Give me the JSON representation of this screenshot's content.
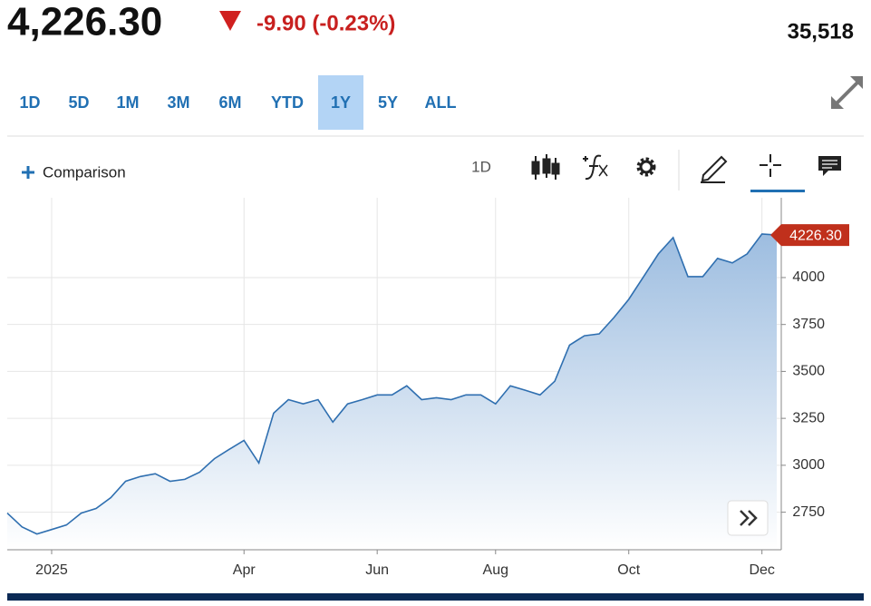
{
  "header": {
    "price": "4,226.30",
    "change": "-9.90 (-0.23%)",
    "volume": "35,518"
  },
  "ranges": [
    "1D",
    "5D",
    "1M",
    "3M",
    "6M",
    "YTD",
    "1Y",
    "5Y",
    "ALL"
  ],
  "selected_range": "1Y",
  "toolbar": {
    "comparison": "Comparison",
    "interval": "1D"
  },
  "chart_data": {
    "type": "area",
    "categories": [
      null,
      null,
      null,
      "2025",
      null,
      null,
      null,
      null,
      null,
      null,
      null,
      null,
      null,
      null,
      null,
      null,
      "Apr",
      null,
      null,
      null,
      null,
      null,
      null,
      null,
      null,
      "Jun",
      null,
      null,
      null,
      null,
      null,
      null,
      null,
      "Aug",
      null,
      null,
      null,
      null,
      null,
      null,
      null,
      null,
      "Oct",
      null,
      null,
      null,
      null,
      null,
      null,
      null,
      null,
      "Dec",
      null
    ],
    "values": [
      2745,
      2672,
      2634,
      2658,
      2682,
      2745,
      2770,
      2828,
      2915,
      2940,
      2955,
      2915,
      2925,
      2963,
      3035,
      3085,
      3133,
      3012,
      3278,
      3350,
      3327,
      3350,
      3230,
      3327,
      3350,
      3375,
      3375,
      3423,
      3350,
      3360,
      3350,
      3375,
      3375,
      3327,
      3423,
      3400,
      3375,
      3448,
      3640,
      3690,
      3700,
      3787,
      3884,
      4005,
      4126,
      4213,
      4005,
      4005,
      4102,
      4078,
      4126,
      4232,
      4226.3
    ],
    "price_tag": "4226.30",
    "color": "#2f6fb0",
    "ylim": [
      2550,
      4425
    ],
    "yticks": [
      2750,
      3000,
      3250,
      3500,
      3750,
      4000
    ],
    "grid": true
  }
}
